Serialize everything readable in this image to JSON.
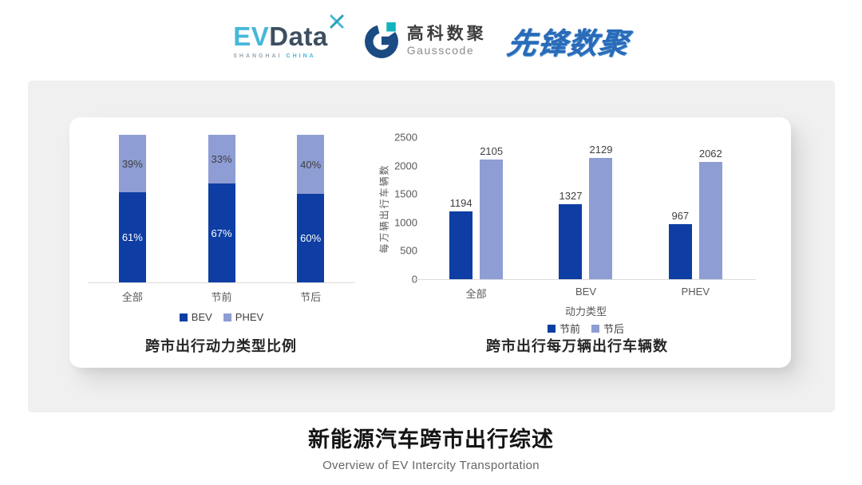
{
  "header": {
    "evdata": {
      "ev": "EV",
      "data": "Data",
      "sub_left": "SHANGHAI",
      "sub_right": "CHINA"
    },
    "gausscode": {
      "cn": "高科数聚",
      "en": "Gausscode"
    },
    "pioneer": {
      "text": "先锋数聚"
    }
  },
  "colors": {
    "series_dark_blue": "#0E3EA3",
    "series_light_blue": "#8E9DD4",
    "accent_cyan": "#45B8D9",
    "logo_navy": "#3D4E61",
    "gauss_blue": "#1A4B82",
    "gauss_teal": "#10B3BE",
    "pioneer_blue": "#2A6AB8",
    "panel_gray": "#F0F0F1",
    "axis_gray": "#595959",
    "label_gray": "#3F3F3F"
  },
  "chart_data": [
    {
      "type": "bar",
      "variant": "stacked_percent",
      "title": "跨市出行动力类型比例",
      "categories": [
        "全部",
        "节前",
        "节后"
      ],
      "series": [
        {
          "name": "BEV",
          "color": "dark",
          "values": [
            61,
            67,
            60
          ],
          "labels": [
            "61%",
            "67%",
            "60%"
          ]
        },
        {
          "name": "PHEV",
          "color": "light",
          "values": [
            39,
            33,
            40
          ],
          "labels": [
            "39%",
            "33%",
            "40%"
          ]
        }
      ],
      "ylim": [
        0,
        100
      ],
      "grid": false,
      "legend_position": "bottom"
    },
    {
      "type": "bar",
      "variant": "grouped",
      "title": "跨市出行每万辆出行车辆数",
      "xlabel": "动力类型",
      "ylabel": "每万辆出行车辆数",
      "categories": [
        "全部",
        "BEV",
        "PHEV"
      ],
      "series": [
        {
          "name": "节前",
          "color": "dark",
          "values": [
            1194,
            1327,
            967
          ]
        },
        {
          "name": "节后",
          "color": "light",
          "values": [
            2105,
            2129,
            2062
          ]
        }
      ],
      "ylim": [
        0,
        2500
      ],
      "yticks": [
        0,
        500,
        1000,
        1500,
        2000,
        2500
      ],
      "grid": false,
      "legend_position": "bottom"
    }
  ],
  "footer": {
    "title": "新能源汽车跨市出行综述",
    "subtitle": "Overview of EV Intercity Transportation"
  }
}
